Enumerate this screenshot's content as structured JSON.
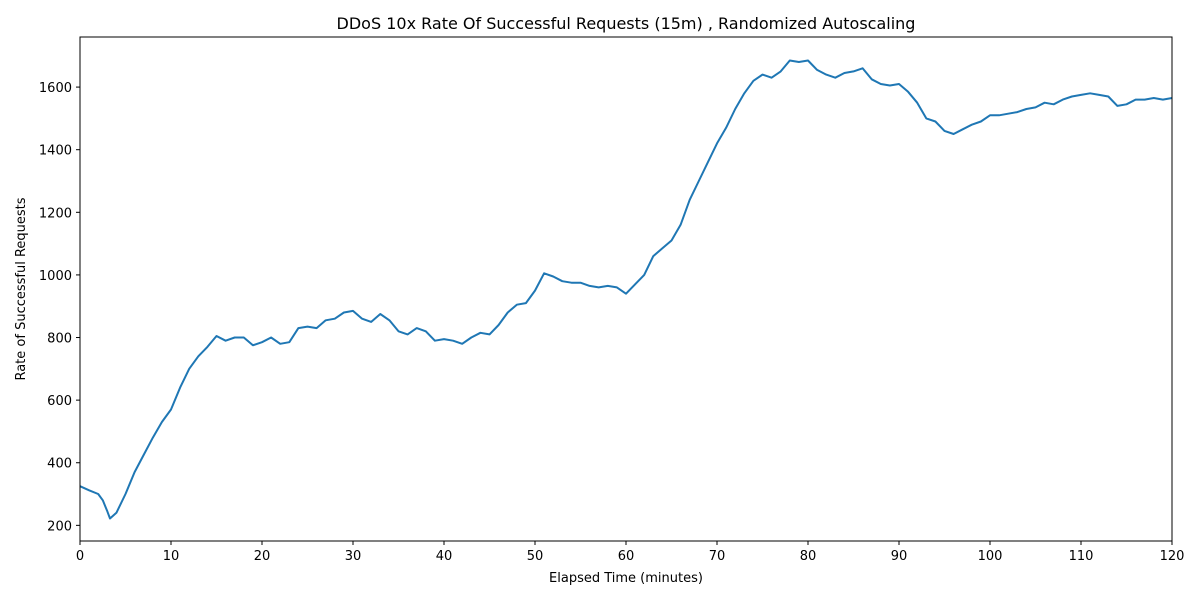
{
  "chart_data": {
    "type": "line",
    "title": "DDoS 10x Rate Of Successful Requests (15m) , Randomized Autoscaling",
    "xlabel": "Elapsed Time (minutes)",
    "ylabel": "Rate of Successful Requests",
    "xlim": [
      0,
      120
    ],
    "ylim": [
      150,
      1760
    ],
    "xticks": [
      0,
      10,
      20,
      30,
      40,
      50,
      60,
      70,
      80,
      90,
      100,
      110,
      120
    ],
    "yticks": [
      200,
      400,
      600,
      800,
      1000,
      1200,
      1400,
      1600
    ],
    "grid": false,
    "series": [
      {
        "color": "#1f77b4",
        "x": [
          0,
          1,
          2,
          2.5,
          3,
          3.3,
          4,
          5,
          6,
          7,
          8,
          9,
          10,
          11,
          12,
          13,
          14,
          15,
          16,
          17,
          18,
          19,
          20,
          21,
          22,
          23,
          24,
          25,
          26,
          27,
          28,
          29,
          30,
          31,
          32,
          33,
          34,
          35,
          36,
          37,
          38,
          39,
          40,
          41,
          42,
          43,
          44,
          45,
          46,
          47,
          48,
          49,
          50,
          51,
          52,
          53,
          54,
          55,
          56,
          57,
          58,
          59,
          60,
          61,
          62,
          63,
          64,
          65,
          66,
          67,
          68,
          69,
          70,
          71,
          72,
          73,
          74,
          75,
          76,
          77,
          78,
          79,
          80,
          81,
          82,
          83,
          84,
          85,
          86,
          87,
          88,
          89,
          90,
          91,
          92,
          93,
          94,
          95,
          96,
          97,
          98,
          99,
          100,
          101,
          102,
          103,
          104,
          105,
          106,
          107,
          108,
          109,
          110,
          111,
          112,
          113,
          114,
          115,
          116,
          117,
          118,
          119,
          120
        ],
        "y": [
          325,
          312,
          300,
          280,
          245,
          222,
          240,
          300,
          370,
          425,
          480,
          530,
          570,
          640,
          700,
          740,
          770,
          805,
          790,
          800,
          800,
          775,
          785,
          800,
          780,
          785,
          830,
          835,
          830,
          855,
          860,
          880,
          885,
          860,
          850,
          875,
          855,
          820,
          810,
          830,
          820,
          790,
          795,
          790,
          780,
          800,
          815,
          810,
          840,
          880,
          905,
          910,
          950,
          1005,
          995,
          980,
          975,
          975,
          965,
          960,
          965,
          960,
          940,
          970,
          1000,
          1060,
          1085,
          1110,
          1160,
          1240,
          1300,
          1360,
          1420,
          1470,
          1530,
          1580,
          1620,
          1640,
          1630,
          1650,
          1685,
          1680,
          1685,
          1655,
          1640,
          1630,
          1645,
          1650,
          1660,
          1625,
          1610,
          1605,
          1610,
          1585,
          1550,
          1500,
          1490,
          1460,
          1450,
          1465,
          1480,
          1490,
          1510,
          1510,
          1515,
          1520,
          1530,
          1535,
          1550,
          1545,
          1560,
          1570,
          1575,
          1580,
          1575,
          1570,
          1540,
          1545,
          1560,
          1560,
          1565,
          1560,
          1565
        ]
      }
    ]
  }
}
